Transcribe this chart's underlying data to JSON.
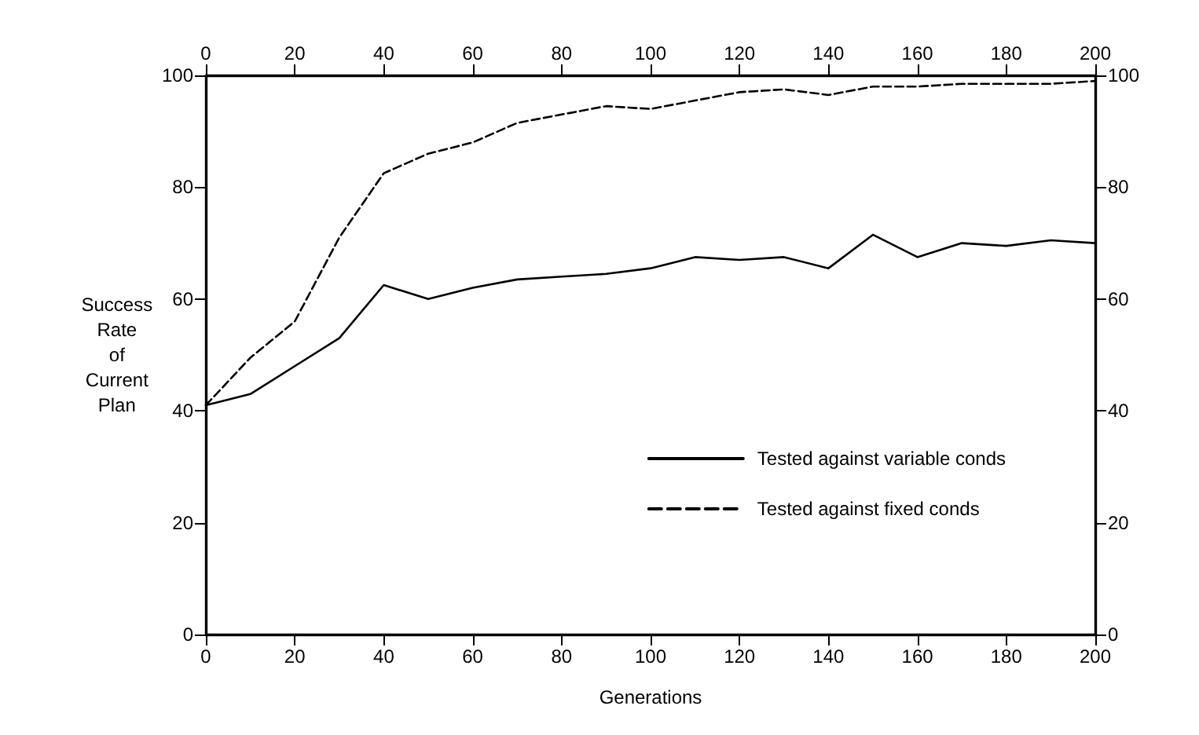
{
  "chart_data": {
    "type": "line",
    "xlabel": "Generations",
    "ylabel": "Success Rate of Current Plan",
    "x": [
      0,
      10,
      20,
      30,
      40,
      50,
      60,
      70,
      80,
      90,
      100,
      110,
      120,
      130,
      140,
      150,
      160,
      170,
      180,
      190,
      200
    ],
    "series": [
      {
        "name": "Tested against variable conds",
        "color": "#000000",
        "line_style": "solid",
        "values": [
          41,
          43,
          48,
          53,
          62.5,
          60,
          62,
          63.5,
          64,
          64.5,
          65.5,
          67.5,
          67,
          67.5,
          65.5,
          71.5,
          67.5,
          70,
          69.5,
          70.5,
          70
        ]
      },
      {
        "name": "Tested against fixed conds",
        "color": "#000000",
        "line_style": "dashed",
        "values": [
          41,
          49.5,
          56,
          71,
          82.5,
          86,
          88,
          91.5,
          93,
          94.5,
          94,
          95.5,
          97,
          97.5,
          96.5,
          98,
          98,
          98.5,
          98.5,
          98.5,
          99
        ]
      }
    ],
    "xlim": [
      0,
      200
    ],
    "xticks": [
      0,
      20,
      40,
      60,
      80,
      100,
      120,
      140,
      160,
      180,
      200
    ],
    "x2lim": [
      0,
      200
    ],
    "x2ticks": [
      0,
      20,
      40,
      60,
      80,
      100,
      120,
      140,
      160,
      180,
      200
    ],
    "ylim": [
      0,
      100
    ],
    "yticks": [
      0,
      20,
      40,
      60,
      80,
      100
    ],
    "y2lim": [
      0,
      100
    ],
    "y2ticks": [
      0,
      20,
      40,
      60,
      80,
      100
    ],
    "marker": "none",
    "grid": false,
    "legend": "bottom right"
  }
}
